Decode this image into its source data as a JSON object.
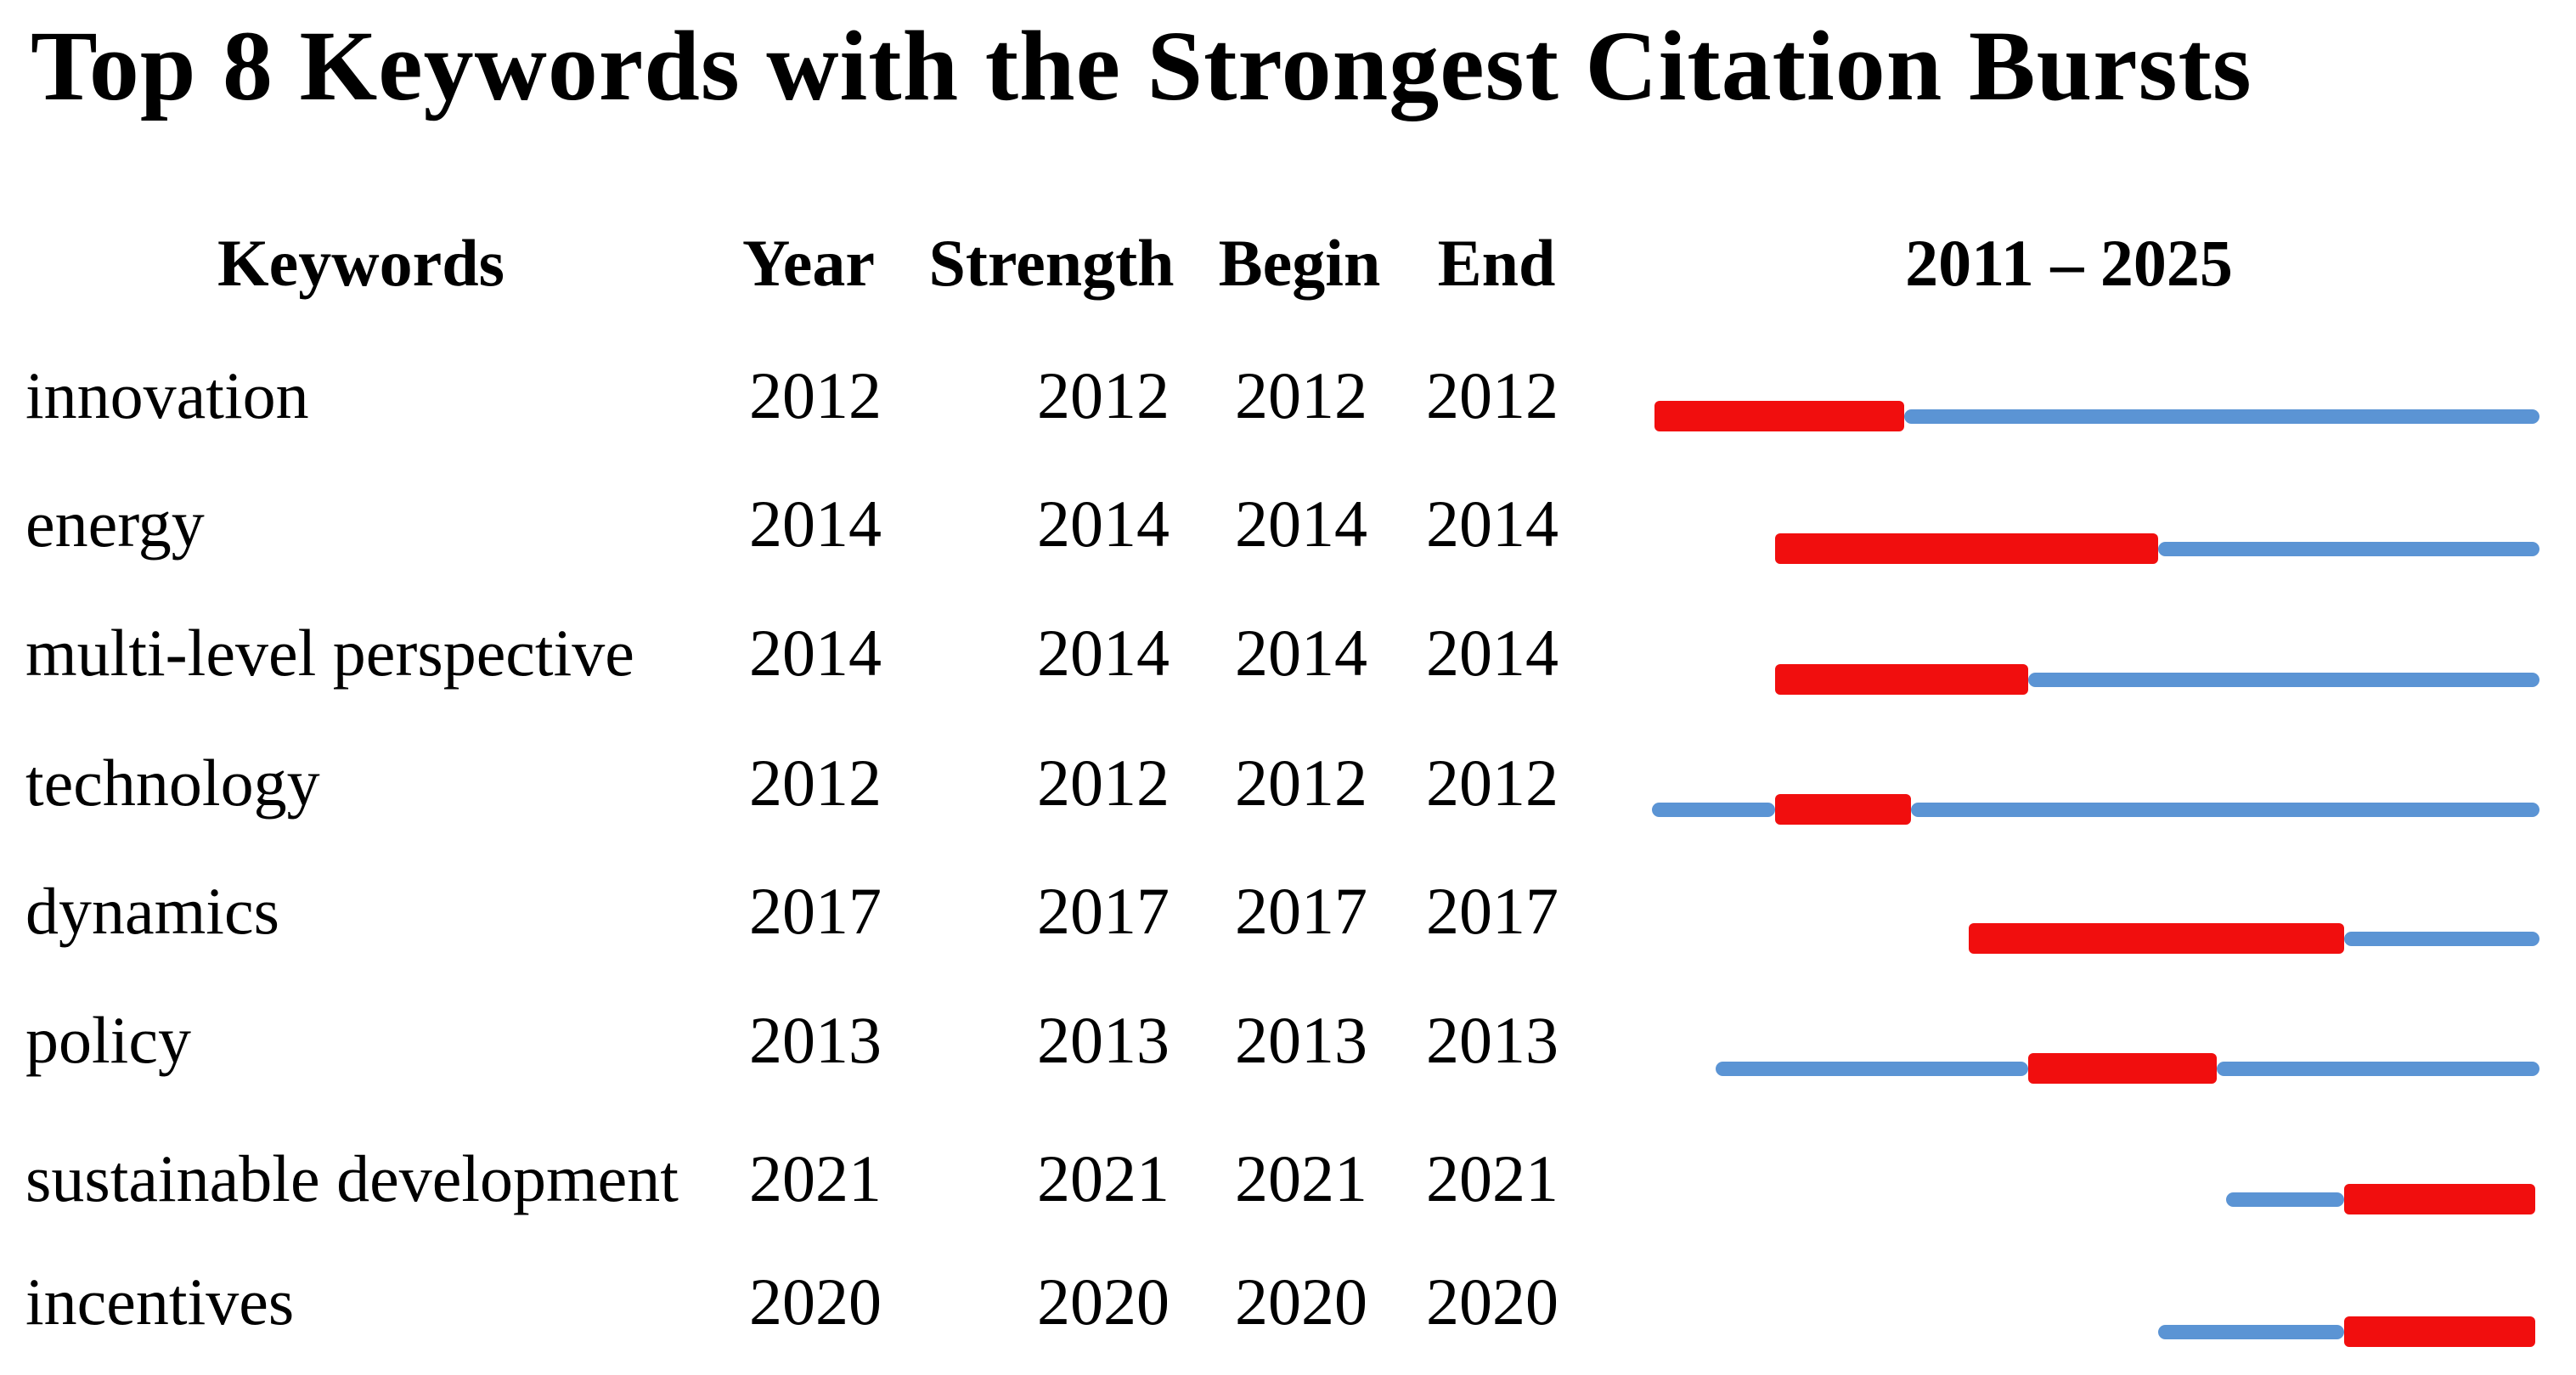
{
  "title": "Top 8 Keywords with the Strongest Citation Bursts",
  "columns": {
    "keywords": "Keywords",
    "year": "Year",
    "strength": "Strength",
    "begin": "Begin",
    "end": "End",
    "range": "2011 – 2025"
  },
  "colors": {
    "background": "#FFFFFF",
    "text": "#000000",
    "burst_red": "#F10E0E",
    "line_blue": "#5B94D4"
  },
  "chart_data": {
    "type": "table",
    "title": "Top 8 Keywords with the Strongest Citation Bursts",
    "columns": [
      "Keywords",
      "Year",
      "Strength",
      "Begin",
      "End",
      "2011 – 2025"
    ],
    "timeline_range": [
      2011,
      2025
    ],
    "legend_position": "none",
    "grid": false,
    "rows": [
      {
        "keyword": "innovation",
        "year": "2012",
        "strength": "2012",
        "begin": "2012",
        "end": "2012",
        "segments": [
          {
            "color": "red",
            "from": 0.003,
            "to": 0.284
          },
          {
            "color": "blue",
            "from": 0.284,
            "to": 1.0
          }
        ]
      },
      {
        "keyword": "energy",
        "year": "2014",
        "strength": "2014",
        "begin": "2014",
        "end": "2014",
        "segments": [
          {
            "color": "red",
            "from": 0.139,
            "to": 0.57
          },
          {
            "color": "blue",
            "from": 0.57,
            "to": 1.0
          }
        ]
      },
      {
        "keyword": "multi-level perspective",
        "year": "2014",
        "strength": "2014",
        "begin": "2014",
        "end": "2014",
        "segments": [
          {
            "color": "red",
            "from": 0.139,
            "to": 0.424
          },
          {
            "color": "blue",
            "from": 0.424,
            "to": 1.0
          }
        ]
      },
      {
        "keyword": "technology",
        "year": "2012",
        "strength": "2012",
        "begin": "2012",
        "end": "2012",
        "segments": [
          {
            "color": "blue",
            "from": 0.0,
            "to": 0.139
          },
          {
            "color": "red",
            "from": 0.139,
            "to": 0.292
          },
          {
            "color": "blue",
            "from": 0.292,
            "to": 1.0
          }
        ]
      },
      {
        "keyword": "dynamics",
        "year": "2017",
        "strength": "2017",
        "begin": "2017",
        "end": "2017",
        "segments": [
          {
            "color": "red",
            "from": 0.357,
            "to": 0.78
          },
          {
            "color": "blue",
            "from": 0.78,
            "to": 1.0
          }
        ]
      },
      {
        "keyword": "policy",
        "year": "2013",
        "strength": "2013",
        "begin": "2013",
        "end": "2013",
        "segments": [
          {
            "color": "blue",
            "from": 0.072,
            "to": 0.424
          },
          {
            "color": "red",
            "from": 0.424,
            "to": 0.636
          },
          {
            "color": "blue",
            "from": 0.636,
            "to": 1.0
          }
        ]
      },
      {
        "keyword": "sustainable development",
        "year": "2021",
        "strength": "2021",
        "begin": "2021",
        "end": "2021",
        "segments": [
          {
            "color": "blue",
            "from": 0.647,
            "to": 0.78
          },
          {
            "color": "red",
            "from": 0.78,
            "to": 0.995
          }
        ]
      },
      {
        "keyword": "incentives",
        "year": "2020",
        "strength": "2020",
        "begin": "2020",
        "end": "2020",
        "segments": [
          {
            "color": "blue",
            "from": 0.57,
            "to": 0.78
          },
          {
            "color": "red",
            "from": 0.78,
            "to": 0.995
          }
        ]
      }
    ]
  }
}
